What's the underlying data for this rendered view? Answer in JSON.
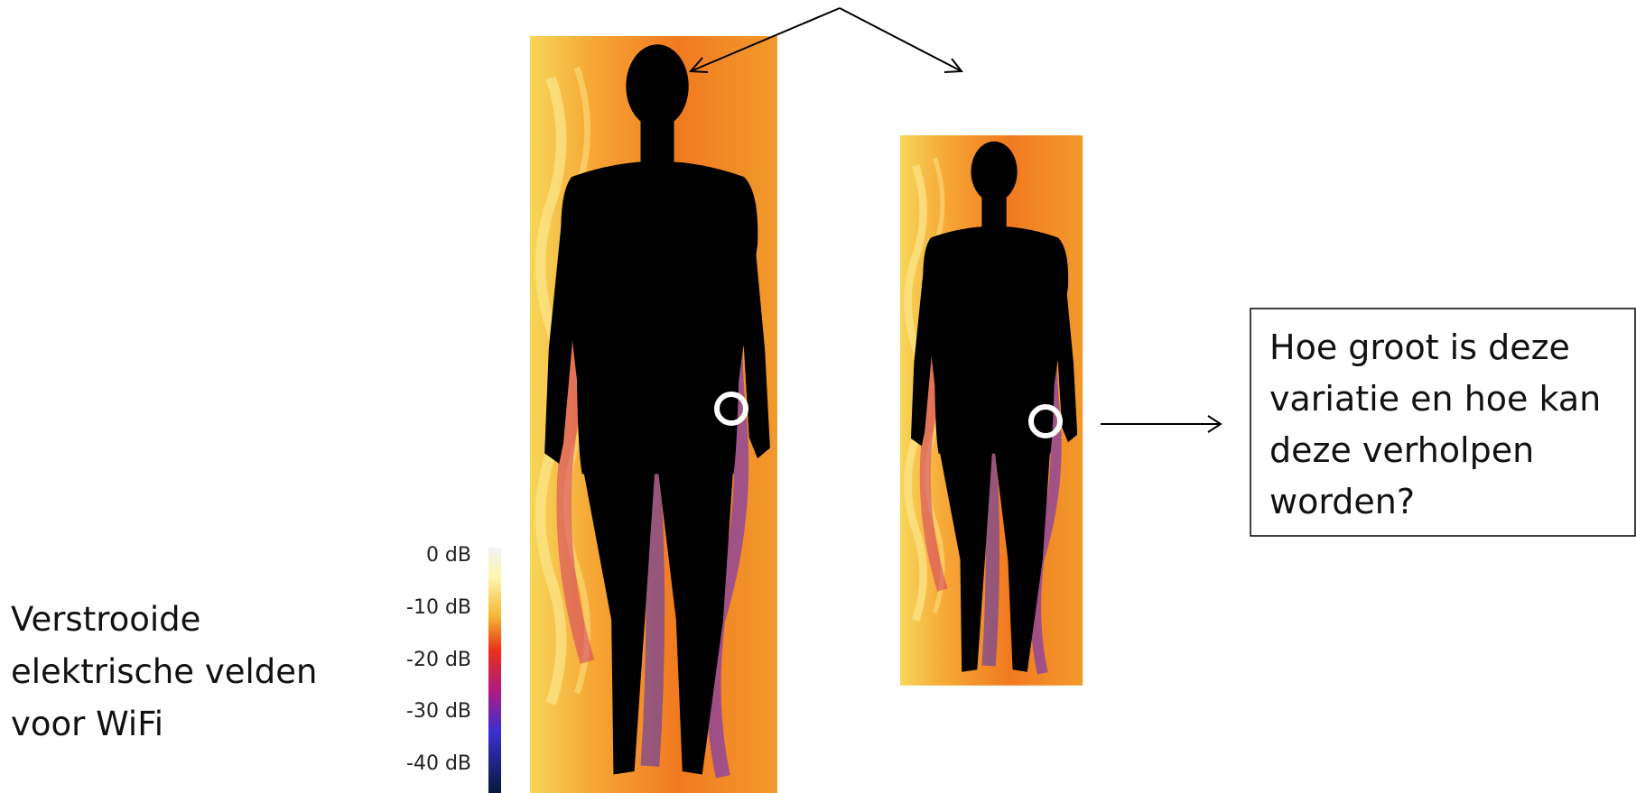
{
  "caption": {
    "lines": [
      "Verstrooide",
      "elektrische velden",
      "voor WiFi"
    ]
  },
  "colorbar": {
    "labels": [
      "0 dB",
      "-10 dB",
      "-20 dB",
      "-30 dB",
      "-40 dB"
    ]
  },
  "question_box": {
    "lines": [
      "Hoe groot is deze",
      "variatie en hoe kan",
      "deze verholpen",
      "worden?"
    ]
  }
}
